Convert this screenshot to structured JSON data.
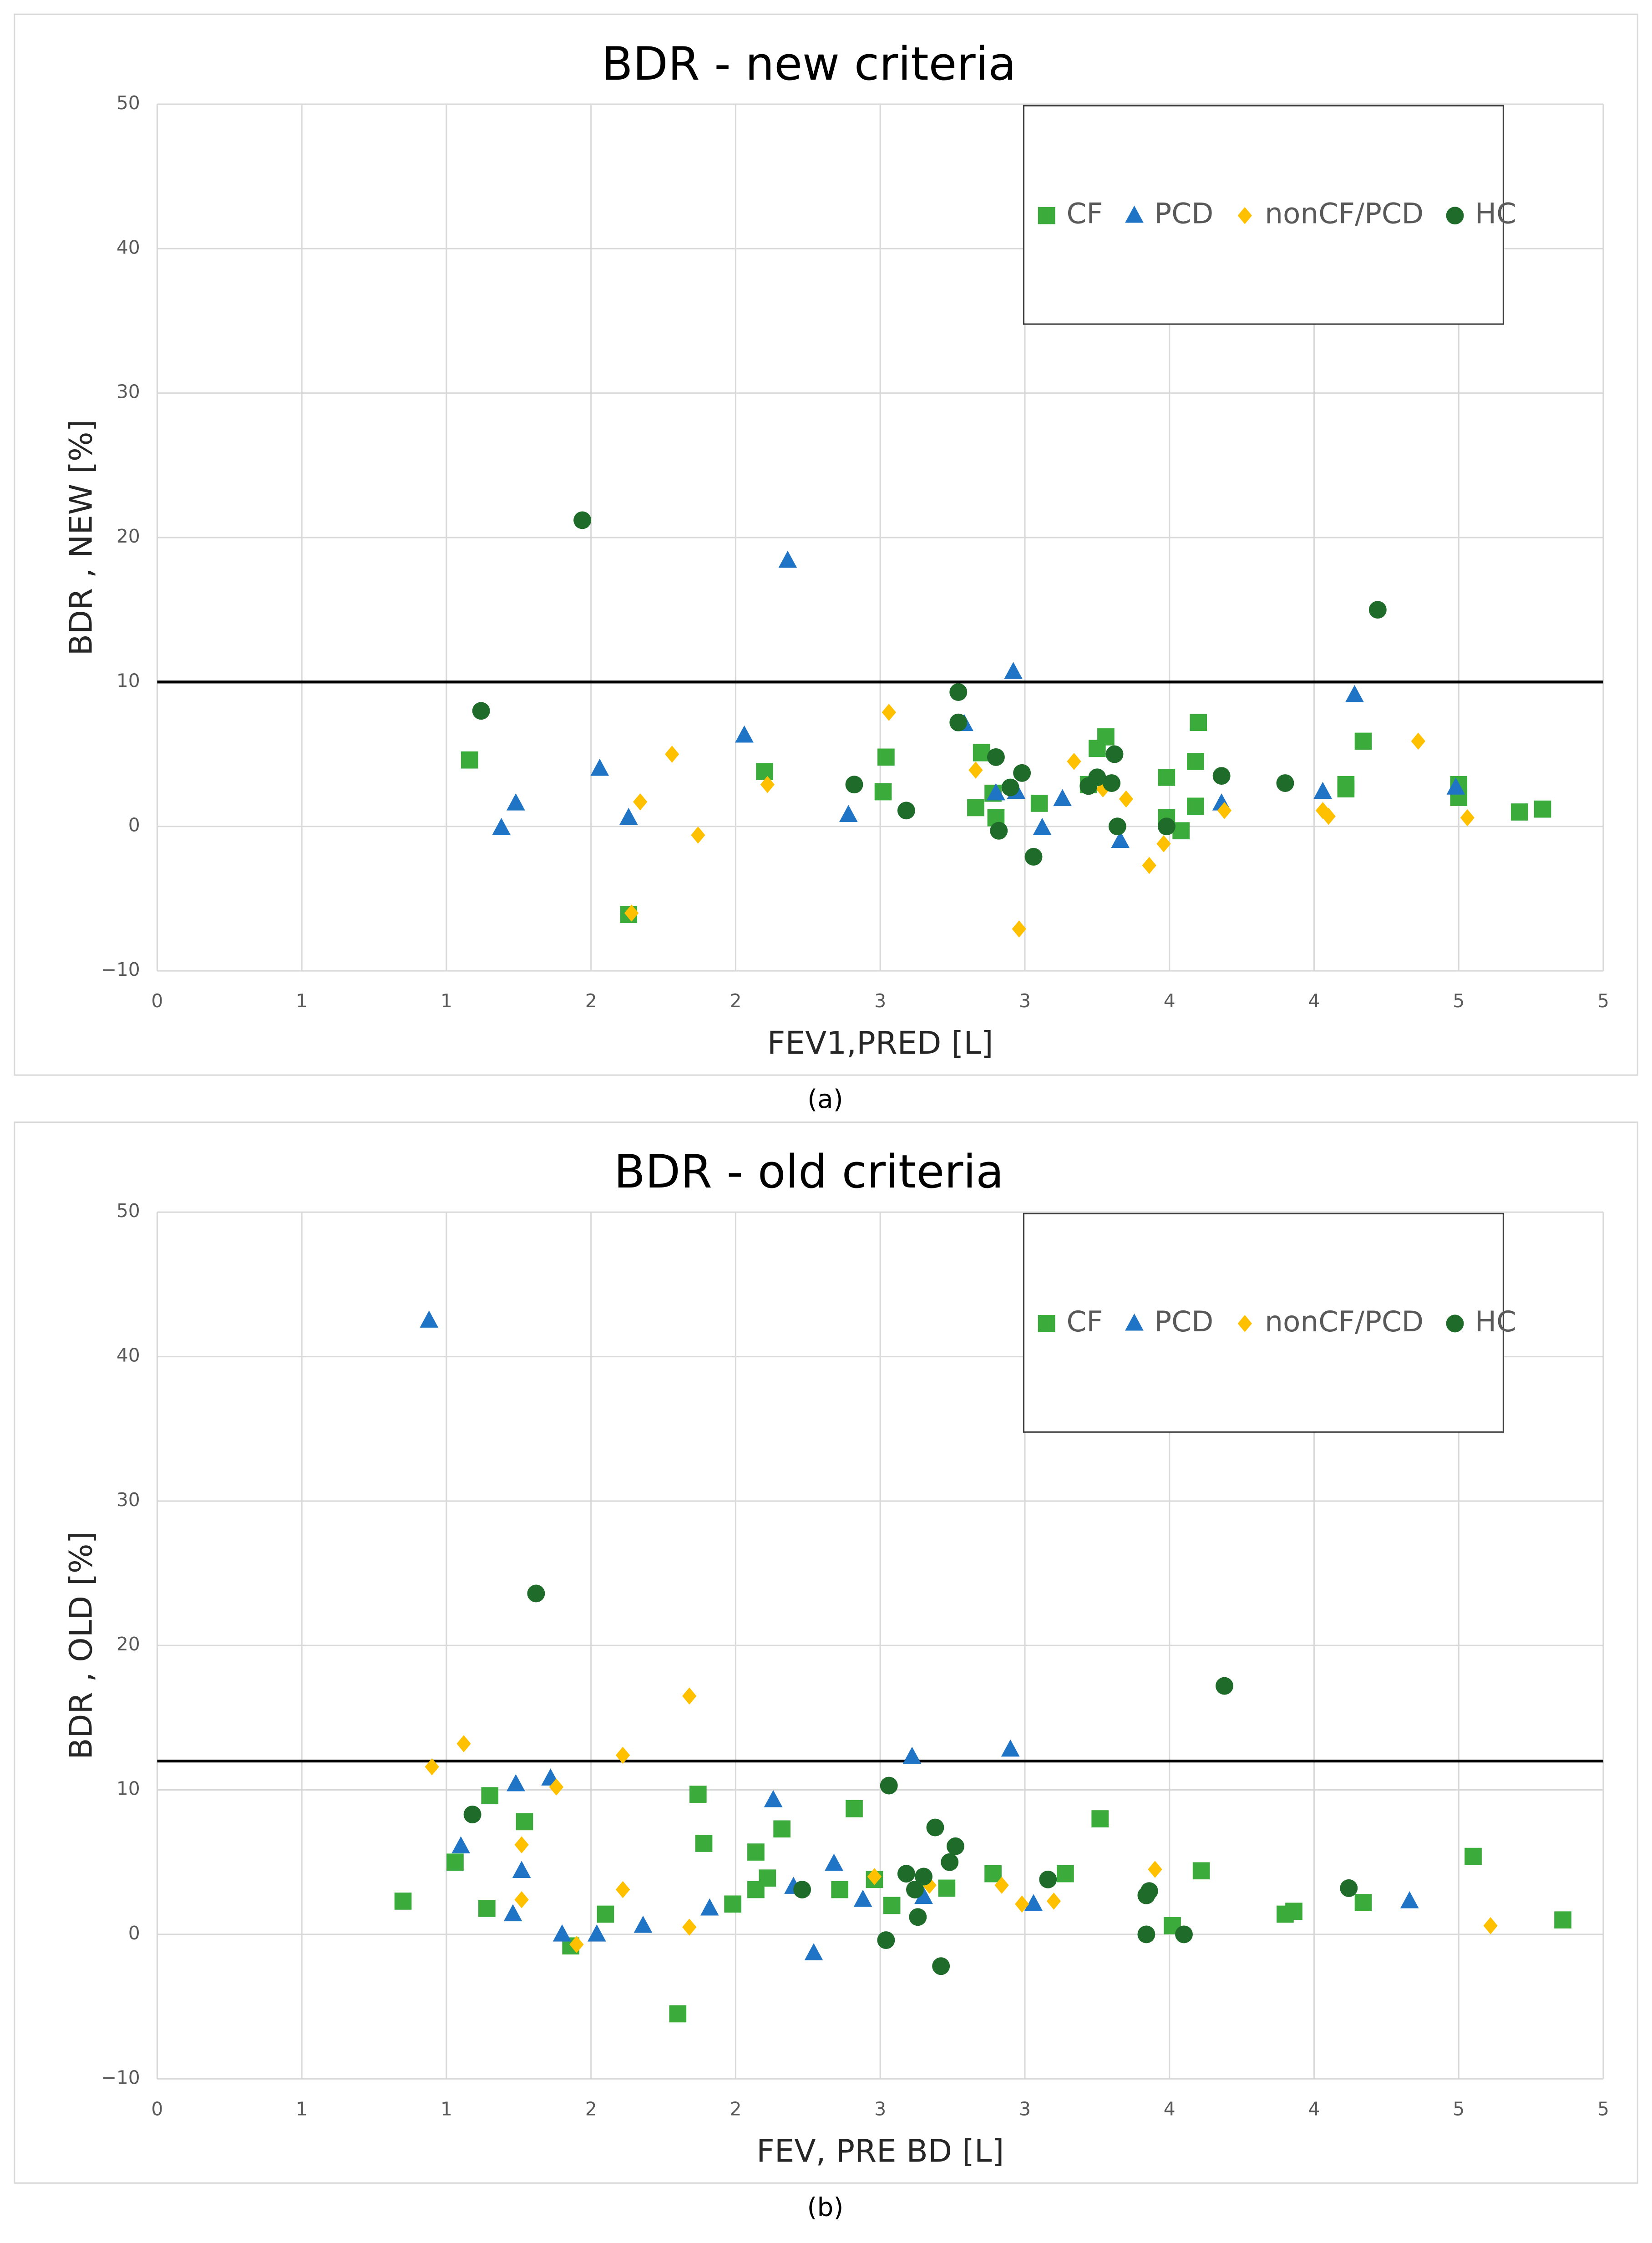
{
  "chart_data": [
    {
      "type": "scatter",
      "title": "BDR - new criteria",
      "xlabel": "FEV1,PRED [L]",
      "ylabel": "BDR , NEW  [%]",
      "caption": "(a)",
      "xlim": [
        0,
        5
      ],
      "ylim": [
        -10,
        50
      ],
      "xticks": [
        0,
        {
          "value": 0.5,
          "label": "1"
        },
        1,
        {
          "value": 1.5,
          "label": "2"
        },
        2,
        {
          "value": 2.5,
          "label": "3"
        },
        3,
        {
          "value": 3.5,
          "label": "4"
        },
        4,
        {
          "value": 4.5,
          "label": "5"
        },
        5
      ],
      "yticks": [
        {
          "value": -10,
          "label": "−10"
        },
        0,
        10,
        20,
        30,
        40,
        50
      ],
      "grid": true,
      "legend": "upper right",
      "reference_line": 10,
      "series": [
        {
          "name": "CF",
          "color": "#3bab3b",
          "marker": "square",
          "x": [
            1.08,
            1.63,
            2.1,
            2.51,
            2.52,
            2.83,
            2.85,
            2.89,
            2.9,
            3.05,
            3.22,
            3.25,
            3.28,
            3.49,
            3.49,
            3.54,
            3.59,
            3.59,
            3.6,
            4.11,
            4.11,
            4.17,
            4.5,
            4.5,
            4.71,
            4.79
          ],
          "values": [
            4.6,
            -6.1,
            3.8,
            2.4,
            4.8,
            1.3,
            5.1,
            2.3,
            0.6,
            1.6,
            2.9,
            5.4,
            6.2,
            0.6,
            3.4,
            -0.3,
            1.4,
            4.5,
            7.2,
            2.6,
            2.9,
            5.9,
            2.9,
            2.0,
            1.0,
            1.2
          ]
        },
        {
          "name": "PCD",
          "color": "#1f74c6",
          "marker": "triangle",
          "x": [
            1.19,
            1.24,
            1.53,
            1.63,
            2.03,
            2.18,
            2.39,
            2.79,
            2.9,
            2.96,
            2.97,
            3.06,
            3.13,
            3.33,
            3.68,
            4.03,
            4.14,
            4.49
          ],
          "values": [
            -0.1,
            1.6,
            4.0,
            0.6,
            6.3,
            18.4,
            0.8,
            7.1,
            2.3,
            10.7,
            2.4,
            -0.1,
            1.9,
            -1.0,
            1.6,
            2.4,
            9.1,
            2.7
          ]
        },
        {
          "name": "nonCF/PCD",
          "color": "#ffc000",
          "marker": "diamond",
          "x": [
            1.67,
            1.64,
            1.78,
            1.87,
            2.11,
            2.53,
            2.83,
            2.98,
            3.17,
            3.27,
            3.35,
            3.43,
            3.48,
            3.69,
            4.03,
            4.05,
            4.36,
            4.53
          ],
          "values": [
            1.7,
            -6.0,
            5.0,
            -0.6,
            2.9,
            7.9,
            3.9,
            -7.1,
            4.5,
            2.6,
            1.9,
            -2.7,
            -1.2,
            1.1,
            1.1,
            0.7,
            5.9,
            0.6
          ]
        },
        {
          "name": "HC",
          "color": "#1e6b2a",
          "marker": "circle",
          "x": [
            1.12,
            1.47,
            2.41,
            2.59,
            2.77,
            2.77,
            2.9,
            2.91,
            2.95,
            2.99,
            3.03,
            3.22,
            3.25,
            3.3,
            3.31,
            3.32,
            3.49,
            3.68,
            3.9,
            4.22
          ],
          "values": [
            8.0,
            21.2,
            2.9,
            1.1,
            9.3,
            7.2,
            4.8,
            -0.3,
            2.7,
            3.7,
            -2.1,
            2.8,
            3.4,
            3.0,
            5.0,
            0.0,
            0.0,
            3.5,
            3.0,
            15.0
          ]
        }
      ]
    },
    {
      "type": "scatter",
      "title": "BDR - old criteria",
      "xlabel": "FEV, PRE BD [L]",
      "ylabel": "BDR , OLD [%]",
      "caption": "(b)",
      "xlim": [
        0,
        5
      ],
      "ylim": [
        -10,
        50
      ],
      "xticks": [
        0,
        {
          "value": 0.5,
          "label": "1"
        },
        1,
        {
          "value": 1.5,
          "label": "2"
        },
        2,
        {
          "value": 2.5,
          "label": "3"
        },
        3,
        {
          "value": 3.5,
          "label": "4"
        },
        4,
        {
          "value": 4.5,
          "label": "5"
        },
        5
      ],
      "yticks": [
        {
          "value": -10,
          "label": "−10"
        },
        0,
        10,
        20,
        30,
        40,
        50
      ],
      "grid": true,
      "legend": "upper right",
      "reference_line": 12,
      "series": [
        {
          "name": "CF",
          "color": "#3bab3b",
          "marker": "square",
          "x": [
            0.85,
            1.03,
            1.14,
            1.15,
            1.27,
            1.43,
            1.55,
            1.8,
            1.87,
            1.89,
            1.99,
            2.07,
            2.07,
            2.11,
            2.16,
            2.36,
            2.41,
            2.48,
            2.54,
            2.73,
            2.89,
            3.14,
            3.26,
            3.51,
            3.61,
            3.9,
            3.93,
            4.17,
            4.55,
            4.86
          ],
          "values": [
            2.3,
            5.0,
            1.8,
            9.6,
            7.8,
            -0.8,
            1.4,
            -5.5,
            9.7,
            6.3,
            2.1,
            3.1,
            5.7,
            3.9,
            7.3,
            3.1,
            8.7,
            3.8,
            2.0,
            3.2,
            4.2,
            4.2,
            8.0,
            0.6,
            4.4,
            1.4,
            1.6,
            2.2,
            5.4,
            1.0
          ]
        },
        {
          "name": "PCD",
          "color": "#1f74c6",
          "marker": "triangle",
          "x": [
            0.94,
            1.05,
            1.23,
            1.24,
            1.26,
            1.36,
            1.4,
            1.52,
            1.68,
            1.91,
            2.13,
            2.2,
            2.27,
            2.34,
            2.44,
            2.61,
            2.65,
            2.95,
            3.03,
            4.33
          ],
          "values": [
            42.5,
            6.1,
            1.4,
            10.4,
            4.4,
            10.8,
            0.0,
            0.0,
            0.6,
            1.8,
            9.3,
            3.3,
            -1.3,
            4.9,
            2.4,
            12.3,
            2.6,
            12.8,
            2.1,
            2.3
          ]
        },
        {
          "name": "nonCF/PCD",
          "color": "#ffc000",
          "marker": "diamond",
          "x": [
            0.95,
            1.06,
            1.26,
            1.26,
            1.38,
            1.45,
            1.61,
            1.61,
            1.84,
            1.84,
            2.48,
            2.67,
            2.92,
            2.99,
            3.1,
            3.45,
            4.61
          ],
          "values": [
            11.6,
            13.2,
            6.2,
            2.4,
            10.2,
            -0.7,
            12.4,
            3.1,
            16.5,
            0.5,
            4.0,
            3.4,
            3.4,
            2.1,
            2.3,
            4.5,
            0.6
          ]
        },
        {
          "name": "HC",
          "color": "#1e6b2a",
          "marker": "circle",
          "x": [
            1.09,
            1.31,
            2.23,
            2.52,
            2.53,
            2.59,
            2.62,
            2.63,
            2.65,
            2.69,
            2.71,
            2.74,
            2.76,
            3.08,
            3.42,
            3.43,
            3.42,
            3.55,
            3.69,
            4.12
          ],
          "values": [
            8.3,
            23.6,
            3.1,
            -0.4,
            10.3,
            4.2,
            3.1,
            1.2,
            4.0,
            7.4,
            -2.2,
            5.0,
            6.1,
            3.8,
            2.7,
            3.0,
            0.0,
            0.0,
            17.2,
            3.2
          ]
        }
      ]
    }
  ]
}
